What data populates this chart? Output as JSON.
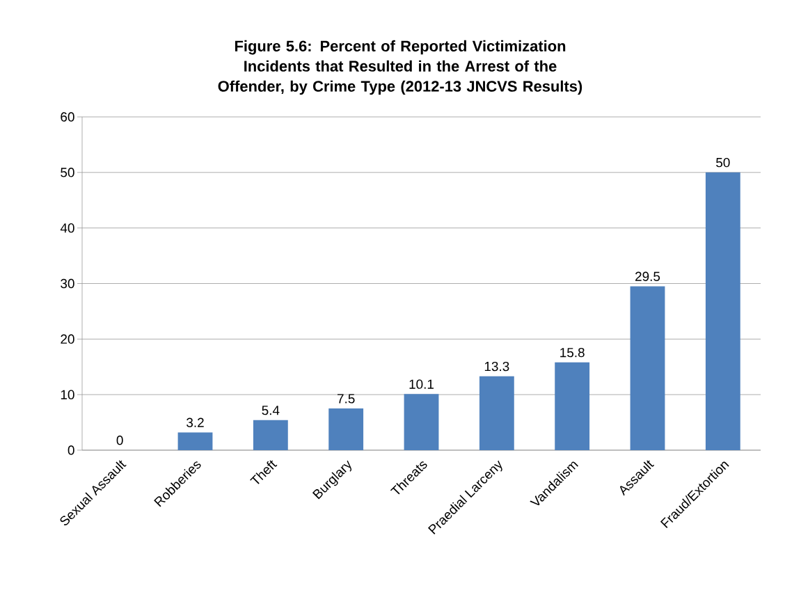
{
  "chart_data": {
    "type": "bar",
    "title": "Figure 5.6: Percent of Reported Victimization Incidents that Resulted in the Arrest of the Offender, by Crime Type (2012-13 JNCVS Results)",
    "categories": [
      "Sexual Assault",
      "Robberies",
      "Theft",
      "Burglary",
      "Threats",
      "Praedial Larceny",
      "Vandalism",
      "Assault",
      "Fraud/Extortion"
    ],
    "values": [
      0,
      3.2,
      5.4,
      7.5,
      10.1,
      13.3,
      15.8,
      29.5,
      50
    ],
    "color": "#4f81bd",
    "ylim": [
      0,
      60
    ],
    "yticks": [
      0,
      10,
      20,
      30,
      40,
      50,
      60
    ],
    "grid": "y",
    "data_labels": true
  }
}
